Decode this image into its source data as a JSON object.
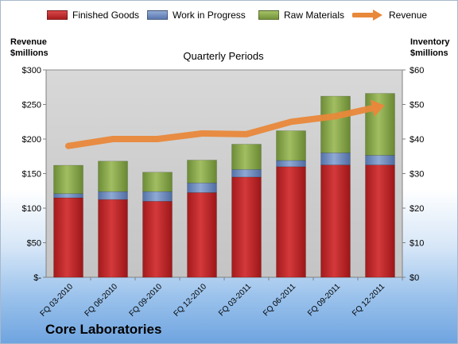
{
  "chart_data": {
    "type": "bar",
    "stacked": true,
    "title": "Quarterly Periods",
    "company": "Core Laboratories",
    "categories": [
      "FQ 03-2010",
      "FQ 06-2010",
      "FQ 09-2010",
      "FQ 12-2010",
      "FQ 03-2011",
      "FQ 06-2011",
      "FQ 09-2011",
      "FQ 12-2011"
    ],
    "left_axis": {
      "label_line1": "Revenue",
      "label_line2": "$millions",
      "ylim": [
        0,
        300
      ],
      "ticks": [
        "$-",
        "$50",
        "$100",
        "$150",
        "$200",
        "$250",
        "$300"
      ]
    },
    "right_axis": {
      "label_line1": "Inventory",
      "label_line2": "$millions",
      "ylim": [
        0,
        60
      ],
      "ticks": [
        "$0",
        "$10",
        "$20",
        "$30",
        "$40",
        "$50",
        "$60"
      ]
    },
    "series": [
      {
        "name": "Finished Goods",
        "axis": "right",
        "color": "#c0282a",
        "values": [
          23,
          22.5,
          22,
          24.5,
          29,
          32,
          32.5,
          32.5
        ]
      },
      {
        "name": "Work in Progress",
        "axis": "right",
        "color": "#6f8fc4",
        "values": [
          1.2,
          2.3,
          2.8,
          2.8,
          2.2,
          1.8,
          3.5,
          2.8
        ]
      },
      {
        "name": "Raw Materials",
        "axis": "right",
        "color": "#8cac4a",
        "values": [
          8.2,
          8.8,
          5.6,
          6.6,
          7.3,
          8.6,
          16.4,
          17.9
        ]
      },
      {
        "name": "Revenue",
        "axis": "left",
        "type": "line",
        "color": "#e8883a",
        "values": [
          190,
          200,
          200,
          208,
          207,
          225,
          233,
          247
        ]
      }
    ],
    "grid": false
  }
}
